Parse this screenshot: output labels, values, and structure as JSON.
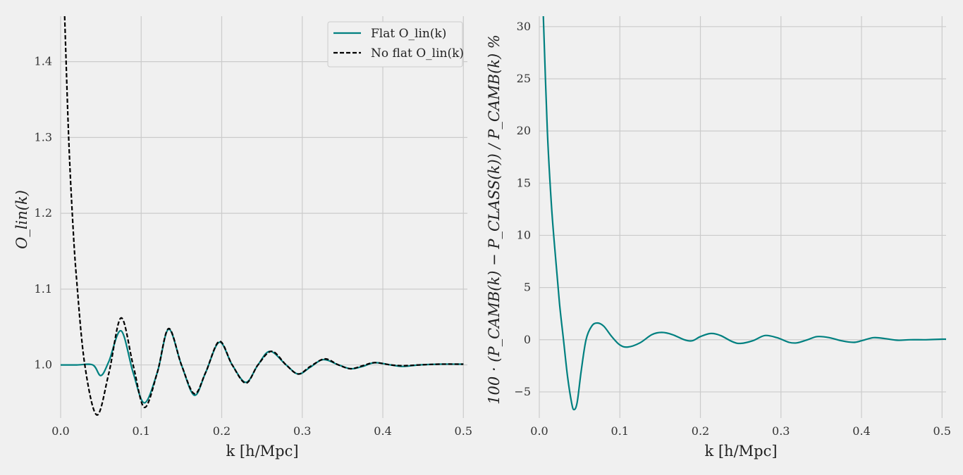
{
  "colors": {
    "background": "#f0f0f0",
    "grid": "#cbcbcb",
    "flat_series": "#008080",
    "noflat_series": "#000000"
  },
  "chart_data": [
    {
      "type": "line",
      "xlabel": "k [h/Mpc]",
      "ylabel": "O_lin(k)",
      "xlim": [
        0.0,
        0.505
      ],
      "ylim": [
        0.93,
        1.46
      ],
      "xticks": [
        0.0,
        0.1,
        0.2,
        0.3,
        0.4,
        0.5
      ],
      "xtick_labels": [
        "0.0",
        "0.1",
        "0.2",
        "0.3",
        "0.4",
        "0.5"
      ],
      "yticks": [
        1.0,
        1.1,
        1.2,
        1.3,
        1.4
      ],
      "ytick_labels": [
        "1.0",
        "1.1",
        "1.2",
        "1.3",
        "1.4"
      ],
      "grid": true,
      "legend_position": "top-right",
      "series": [
        {
          "name": "Flat O_lin(k)",
          "color": "#008080",
          "style": "solid",
          "points": [
            [
              0.0,
              1.0
            ],
            [
              0.02,
              1.0
            ],
            [
              0.04,
              1.0
            ],
            [
              0.05,
              0.986
            ],
            [
              0.06,
              1.005
            ],
            [
              0.075,
              1.045
            ],
            [
              0.09,
              0.99
            ],
            [
              0.104,
              0.95
            ],
            [
              0.12,
              0.99
            ],
            [
              0.134,
              1.047
            ],
            [
              0.15,
              1.0
            ],
            [
              0.166,
              0.96
            ],
            [
              0.18,
              0.99
            ],
            [
              0.197,
              1.03
            ],
            [
              0.213,
              1.0
            ],
            [
              0.23,
              0.977
            ],
            [
              0.245,
              1.0
            ],
            [
              0.26,
              1.018
            ],
            [
              0.28,
              1.0
            ],
            [
              0.295,
              0.988
            ],
            [
              0.31,
              0.997
            ],
            [
              0.326,
              1.007
            ],
            [
              0.345,
              1.0
            ],
            [
              0.36,
              0.995
            ],
            [
              0.375,
              0.998
            ],
            [
              0.39,
              1.003
            ],
            [
              0.41,
              1.0
            ],
            [
              0.425,
              0.998
            ],
            [
              0.445,
              1.0
            ],
            [
              0.47,
              1.001
            ],
            [
              0.5,
              1.001
            ]
          ]
        },
        {
          "name": "No flat O_lin(k)",
          "color": "#000000",
          "style": "dashed",
          "points": [
            [
              0.005,
              1.46
            ],
            [
              0.01,
              1.3
            ],
            [
              0.015,
              1.19
            ],
            [
              0.02,
              1.11
            ],
            [
              0.03,
              1.0
            ],
            [
              0.045,
              0.934
            ],
            [
              0.06,
              0.99
            ],
            [
              0.075,
              1.062
            ],
            [
              0.09,
              1.0
            ],
            [
              0.104,
              0.944
            ],
            [
              0.12,
              0.99
            ],
            [
              0.134,
              1.048
            ],
            [
              0.15,
              1.0
            ],
            [
              0.166,
              0.962
            ],
            [
              0.18,
              0.99
            ],
            [
              0.197,
              1.031
            ],
            [
              0.213,
              1.0
            ],
            [
              0.23,
              0.976
            ],
            [
              0.245,
              1.0
            ],
            [
              0.262,
              1.018
            ],
            [
              0.28,
              1.0
            ],
            [
              0.295,
              0.988
            ],
            [
              0.31,
              0.998
            ],
            [
              0.328,
              1.008
            ],
            [
              0.345,
              1.0
            ],
            [
              0.36,
              0.995
            ],
            [
              0.375,
              0.999
            ],
            [
              0.39,
              1.003
            ],
            [
              0.41,
              1.0
            ],
            [
              0.425,
              0.999
            ],
            [
              0.445,
              1.0
            ],
            [
              0.47,
              1.001
            ],
            [
              0.5,
              1.001
            ]
          ]
        }
      ]
    },
    {
      "type": "line",
      "xlabel": "k [h/Mpc]",
      "ylabel": "100 · (P_CAMB(k) − P_CLASS(k)) / P_CAMB(k) %",
      "xlim": [
        0.0,
        0.505
      ],
      "ylim": [
        -7.5,
        31
      ],
      "xticks": [
        0.0,
        0.1,
        0.2,
        0.3,
        0.4,
        0.5
      ],
      "xtick_labels": [
        "0.0",
        "0.1",
        "0.2",
        "0.3",
        "0.4",
        "0.5"
      ],
      "yticks": [
        -5,
        0,
        5,
        10,
        15,
        20,
        25,
        30
      ],
      "ytick_labels": [
        "−5",
        "0",
        "5",
        "10",
        "15",
        "20",
        "25",
        "30"
      ],
      "grid": true,
      "series": [
        {
          "color": "#008080",
          "style": "solid",
          "points": [
            [
              0.005,
              31
            ],
            [
              0.01,
              20
            ],
            [
              0.015,
              13
            ],
            [
              0.02,
              8
            ],
            [
              0.025,
              3.5
            ],
            [
              0.03,
              0
            ],
            [
              0.035,
              -3.5
            ],
            [
              0.04,
              -6
            ],
            [
              0.043,
              -6.7
            ],
            [
              0.047,
              -6
            ],
            [
              0.052,
              -3
            ],
            [
              0.058,
              0
            ],
            [
              0.065,
              1.3
            ],
            [
              0.072,
              1.6
            ],
            [
              0.08,
              1.3
            ],
            [
              0.09,
              0.3
            ],
            [
              0.1,
              -0.5
            ],
            [
              0.11,
              -0.7
            ],
            [
              0.125,
              -0.3
            ],
            [
              0.14,
              0.5
            ],
            [
              0.152,
              0.7
            ],
            [
              0.165,
              0.5
            ],
            [
              0.18,
              0.0
            ],
            [
              0.19,
              -0.1
            ],
            [
              0.2,
              0.3
            ],
            [
              0.213,
              0.6
            ],
            [
              0.225,
              0.4
            ],
            [
              0.24,
              -0.2
            ],
            [
              0.25,
              -0.35
            ],
            [
              0.265,
              -0.1
            ],
            [
              0.28,
              0.4
            ],
            [
              0.295,
              0.2
            ],
            [
              0.31,
              -0.25
            ],
            [
              0.32,
              -0.3
            ],
            [
              0.333,
              0.0
            ],
            [
              0.345,
              0.3
            ],
            [
              0.36,
              0.2
            ],
            [
              0.375,
              -0.1
            ],
            [
              0.39,
              -0.25
            ],
            [
              0.4,
              -0.1
            ],
            [
              0.415,
              0.2
            ],
            [
              0.43,
              0.1
            ],
            [
              0.445,
              -0.05
            ],
            [
              0.46,
              0.0
            ],
            [
              0.48,
              0.0
            ],
            [
              0.5,
              0.05
            ],
            [
              0.505,
              0.05
            ]
          ]
        }
      ]
    }
  ]
}
